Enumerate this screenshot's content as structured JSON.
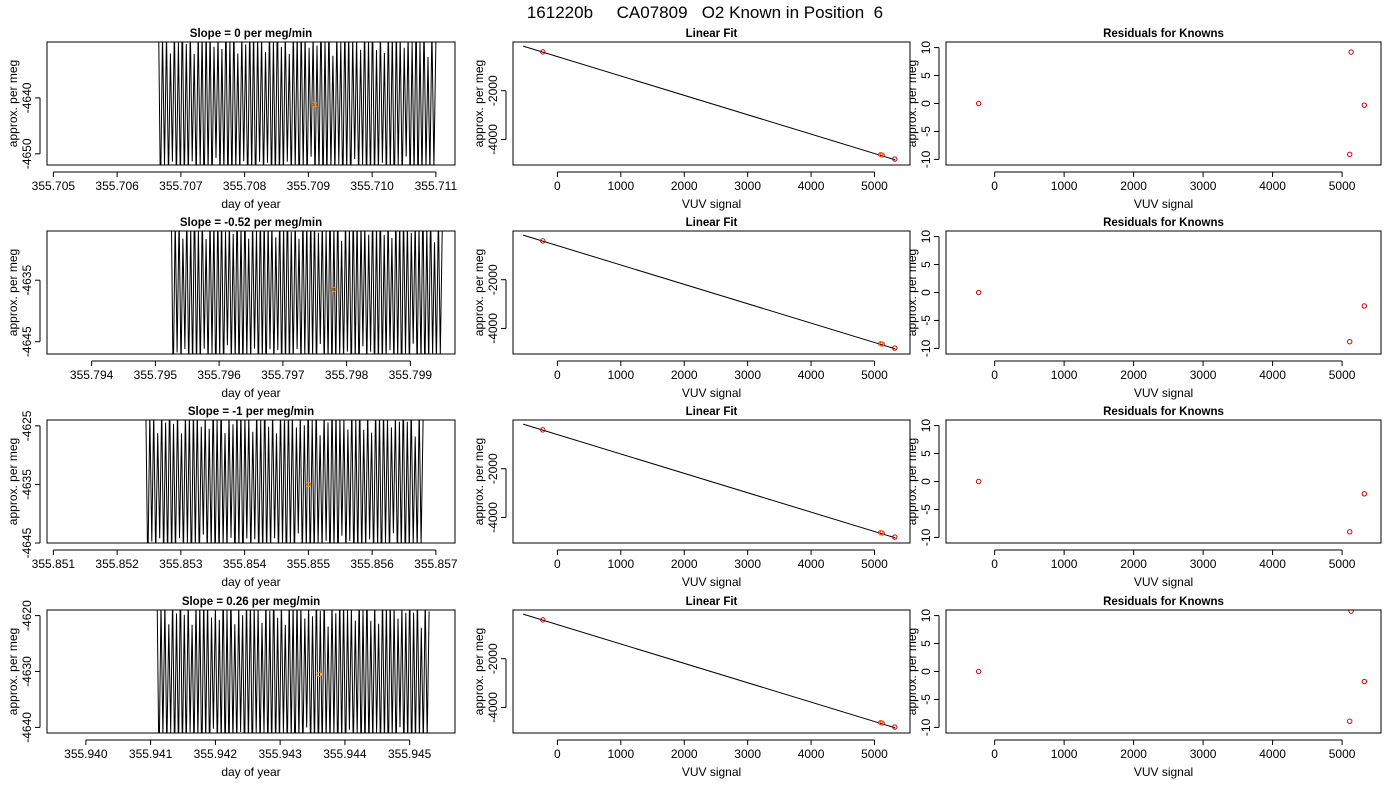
{
  "figure_title": "161220b     CA07809   O2 Known in Position  6",
  "colors": {
    "trace": "#000000",
    "known_point": "#cc0000",
    "mean_point": "#ff8c00",
    "fit_line": "#000000"
  },
  "chart_data": [
    {
      "type": "line",
      "title": "Slope =  0  per meg/min",
      "xlabel": "day of year",
      "ylabel": "approx. per meg",
      "xlim": [
        355.7049,
        355.7113
      ],
      "ylim": [
        -4652,
        -4630
      ],
      "xticks": [
        "355.705",
        "355.706",
        "355.707",
        "355.708",
        "355.709",
        "355.710",
        "355.711"
      ],
      "xtick_values": [
        355.705,
        355.706,
        355.707,
        355.708,
        355.709,
        355.71,
        355.711
      ],
      "yticks": [
        "-4650",
        "-4640"
      ],
      "ytick_values": [
        -4650,
        -4640
      ],
      "trace": {
        "x_start": 355.70665,
        "x_end": 355.711,
        "center": -4641.5,
        "amplitude": 14,
        "cycles": 70
      },
      "mean_point": {
        "x": 355.7091,
        "y": -4641.2
      }
    },
    {
      "type": "scatter",
      "title": "Linear Fit",
      "xlabel": "VUV signal",
      "ylabel": "approx. per meg",
      "xlim": [
        -700,
        5560
      ],
      "ylim": [
        -5050,
        0
      ],
      "xticks": [
        "0",
        "1000",
        "2000",
        "3000",
        "4000",
        "5000"
      ],
      "xtick_values": [
        0,
        1000,
        2000,
        3000,
        4000,
        5000
      ],
      "yticks": [
        "-4000",
        "-2000"
      ],
      "ytick_values": [
        -4000,
        -2000
      ],
      "fit_line": {
        "x": [
          -540,
          5330
        ],
        "y": [
          -170,
          -4840
        ]
      },
      "known_points": [
        {
          "x": -230,
          "y": -405
        },
        {
          "x": 5100,
          "y": -4625
        },
        {
          "x": 5120,
          "y": -4640
        },
        {
          "x": 5320,
          "y": -4805
        }
      ],
      "mean_point": {
        "x": 5110,
        "y": -4633
      }
    },
    {
      "type": "scatter",
      "title": "Residuals for Knowns",
      "xlabel": "VUV signal",
      "ylabel": "approx. per meg",
      "xlim": [
        -700,
        5560
      ],
      "ylim": [
        -11,
        11
      ],
      "xticks": [
        "0",
        "1000",
        "2000",
        "3000",
        "4000",
        "5000"
      ],
      "xtick_values": [
        0,
        1000,
        2000,
        3000,
        4000,
        5000
      ],
      "yticks": [
        "-10",
        "-5",
        "0",
        "5",
        "10"
      ],
      "ytick_values": [
        -10,
        -5,
        0,
        5,
        10
      ],
      "points": [
        {
          "x": -230,
          "y": 0
        },
        {
          "x": 5130,
          "y": 9.2
        },
        {
          "x": 5110,
          "y": -9.1
        },
        {
          "x": 5320,
          "y": -0.3
        }
      ]
    },
    {
      "type": "line",
      "title": "Slope =  -0.52  per meg/min",
      "xlabel": "day of year",
      "ylabel": "approx. per meg",
      "xlim": [
        355.7933,
        355.7997
      ],
      "ylim": [
        -4647,
        -4627
      ],
      "xticks": [
        "355.794",
        "355.795",
        "355.796",
        "355.797",
        "355.798",
        "355.799"
      ],
      "xtick_values": [
        355.794,
        355.795,
        355.796,
        355.797,
        355.798,
        355.799
      ],
      "yticks": [
        "-4645",
        "-4635"
      ],
      "ytick_values": [
        -4645,
        -4635
      ],
      "trace": {
        "x_start": 355.79525,
        "x_end": 355.7995,
        "center": -4637,
        "amplitude": 13,
        "cycles": 70
      },
      "mean_point": {
        "x": 355.7978,
        "y": -4636.5
      }
    },
    {
      "type": "scatter",
      "title": "Linear Fit",
      "xlabel": "VUV signal",
      "ylabel": "approx. per meg",
      "xlim": [
        -700,
        5560
      ],
      "ylim": [
        -5050,
        0
      ],
      "xticks": [
        "0",
        "1000",
        "2000",
        "3000",
        "4000",
        "5000"
      ],
      "xtick_values": [
        0,
        1000,
        2000,
        3000,
        4000,
        5000
      ],
      "yticks": [
        "-4000",
        "-2000"
      ],
      "ytick_values": [
        -4000,
        -2000
      ],
      "fit_line": {
        "x": [
          -540,
          5330
        ],
        "y": [
          -170,
          -4840
        ]
      },
      "known_points": [
        {
          "x": -230,
          "y": -405
        },
        {
          "x": 5100,
          "y": -4625
        },
        {
          "x": 5120,
          "y": -4640
        },
        {
          "x": 5320,
          "y": -4805
        }
      ],
      "mean_point": {
        "x": 5110,
        "y": -4633
      }
    },
    {
      "type": "scatter",
      "title": "Residuals for Knowns",
      "xlabel": "VUV signal",
      "ylabel": "approx. per meg",
      "xlim": [
        -700,
        5560
      ],
      "ylim": [
        -11,
        11
      ],
      "xticks": [
        "0",
        "1000",
        "2000",
        "3000",
        "4000",
        "5000"
      ],
      "xtick_values": [
        0,
        1000,
        2000,
        3000,
        4000,
        5000
      ],
      "yticks": [
        "-10",
        "-5",
        "0",
        "5",
        "10"
      ],
      "ytick_values": [
        -10,
        -5,
        0,
        5,
        10
      ],
      "points": [
        {
          "x": -230,
          "y": 0
        },
        {
          "x": 5110,
          "y": -8.8
        },
        {
          "x": 5320,
          "y": -2.4
        }
      ]
    },
    {
      "type": "line",
      "title": "Slope =  -1  per meg/min",
      "xlabel": "day of year",
      "ylabel": "approx. per meg",
      "xlim": [
        355.8509,
        355.8573
      ],
      "ylim": [
        -4645,
        -4624
      ],
      "xticks": [
        "355.851",
        "355.852",
        "355.853",
        "355.854",
        "355.855",
        "355.856",
        "355.857"
      ],
      "xtick_values": [
        355.851,
        355.852,
        355.853,
        355.854,
        355.855,
        355.856,
        355.857
      ],
      "yticks": [
        "-4645",
        "-4635",
        "-4625"
      ],
      "ytick_values": [
        -4645,
        -4635,
        -4625
      ],
      "trace": {
        "x_start": 355.85245,
        "x_end": 355.8568,
        "center": -4635,
        "amplitude": 13,
        "cycles": 70
      },
      "mean_point": {
        "x": 355.855,
        "y": -4635
      }
    },
    {
      "type": "scatter",
      "title": "Linear Fit",
      "xlabel": "VUV signal",
      "ylabel": "approx. per meg",
      "xlim": [
        -700,
        5560
      ],
      "ylim": [
        -5050,
        0
      ],
      "xticks": [
        "0",
        "1000",
        "2000",
        "3000",
        "4000",
        "5000"
      ],
      "xtick_values": [
        0,
        1000,
        2000,
        3000,
        4000,
        5000
      ],
      "yticks": [
        "-4000",
        "-2000"
      ],
      "ytick_values": [
        -4000,
        -2000
      ],
      "fit_line": {
        "x": [
          -540,
          5330
        ],
        "y": [
          -170,
          -4840
        ]
      },
      "known_points": [
        {
          "x": -230,
          "y": -405
        },
        {
          "x": 5100,
          "y": -4625
        },
        {
          "x": 5120,
          "y": -4640
        },
        {
          "x": 5320,
          "y": -4805
        }
      ],
      "mean_point": {
        "x": 5110,
        "y": -4633
      }
    },
    {
      "type": "scatter",
      "title": "Residuals for Knowns",
      "xlabel": "VUV signal",
      "ylabel": "approx. per meg",
      "xlim": [
        -700,
        5560
      ],
      "ylim": [
        -11,
        11
      ],
      "xticks": [
        "0",
        "1000",
        "2000",
        "3000",
        "4000",
        "5000"
      ],
      "xtick_values": [
        0,
        1000,
        2000,
        3000,
        4000,
        5000
      ],
      "yticks": [
        "-10",
        "-5",
        "0",
        "5",
        "10"
      ],
      "ytick_values": [
        -10,
        -5,
        0,
        5,
        10
      ],
      "points": [
        {
          "x": -230,
          "y": 0
        },
        {
          "x": 5110,
          "y": -9.0
        },
        {
          "x": 5320,
          "y": -2.2
        }
      ]
    },
    {
      "type": "line",
      "title": "Slope =  0.26  per meg/min",
      "xlabel": "day of year",
      "ylabel": "approx. per meg",
      "xlim": [
        355.9394,
        355.9457
      ],
      "ylim": [
        -4641,
        -4619
      ],
      "xticks": [
        "355.940",
        "355.941",
        "355.942",
        "355.943",
        "355.944",
        "355.945"
      ],
      "xtick_values": [
        355.94,
        355.941,
        355.942,
        355.943,
        355.944,
        355.945
      ],
      "yticks": [
        "-4640",
        "-4630",
        "-4620"
      ],
      "ytick_values": [
        -4640,
        -4630,
        -4620
      ],
      "trace": {
        "x_start": 355.9411,
        "x_end": 355.9453,
        "center": -4631,
        "amplitude": 14,
        "cycles": 70
      },
      "mean_point": {
        "x": 355.9436,
        "y": -4630.5
      }
    },
    {
      "type": "scatter",
      "title": "Linear Fit",
      "xlabel": "VUV signal",
      "ylabel": "approx. per meg",
      "xlim": [
        -700,
        5560
      ],
      "ylim": [
        -5050,
        0
      ],
      "xticks": [
        "0",
        "1000",
        "2000",
        "3000",
        "4000",
        "5000"
      ],
      "xtick_values": [
        0,
        1000,
        2000,
        3000,
        4000,
        5000
      ],
      "yticks": [
        "-4000",
        "-2000"
      ],
      "ytick_values": [
        -4000,
        -2000
      ],
      "fit_line": {
        "x": [
          -540,
          5330
        ],
        "y": [
          -170,
          -4840
        ]
      },
      "known_points": [
        {
          "x": -230,
          "y": -405
        },
        {
          "x": 5100,
          "y": -4625
        },
        {
          "x": 5120,
          "y": -4640
        },
        {
          "x": 5320,
          "y": -4805
        }
      ],
      "mean_point": {
        "x": 5110,
        "y": -4633
      }
    },
    {
      "type": "scatter",
      "title": "Residuals for Knowns",
      "xlabel": "VUV signal",
      "ylabel": "approx. per meg",
      "xlim": [
        -700,
        5560
      ],
      "ylim": [
        -11,
        11
      ],
      "xticks": [
        "0",
        "1000",
        "2000",
        "3000",
        "4000",
        "5000"
      ],
      "xtick_values": [
        0,
        1000,
        2000,
        3000,
        4000,
        5000
      ],
      "yticks": [
        "-10",
        "-5",
        "0",
        "5",
        "10"
      ],
      "ytick_values": [
        -10,
        -5,
        0,
        5,
        10
      ],
      "points": [
        {
          "x": -230,
          "y": 0
        },
        {
          "x": 5130,
          "y": 10.8
        },
        {
          "x": 5110,
          "y": -8.9
        },
        {
          "x": 5320,
          "y": -1.8
        }
      ]
    }
  ]
}
